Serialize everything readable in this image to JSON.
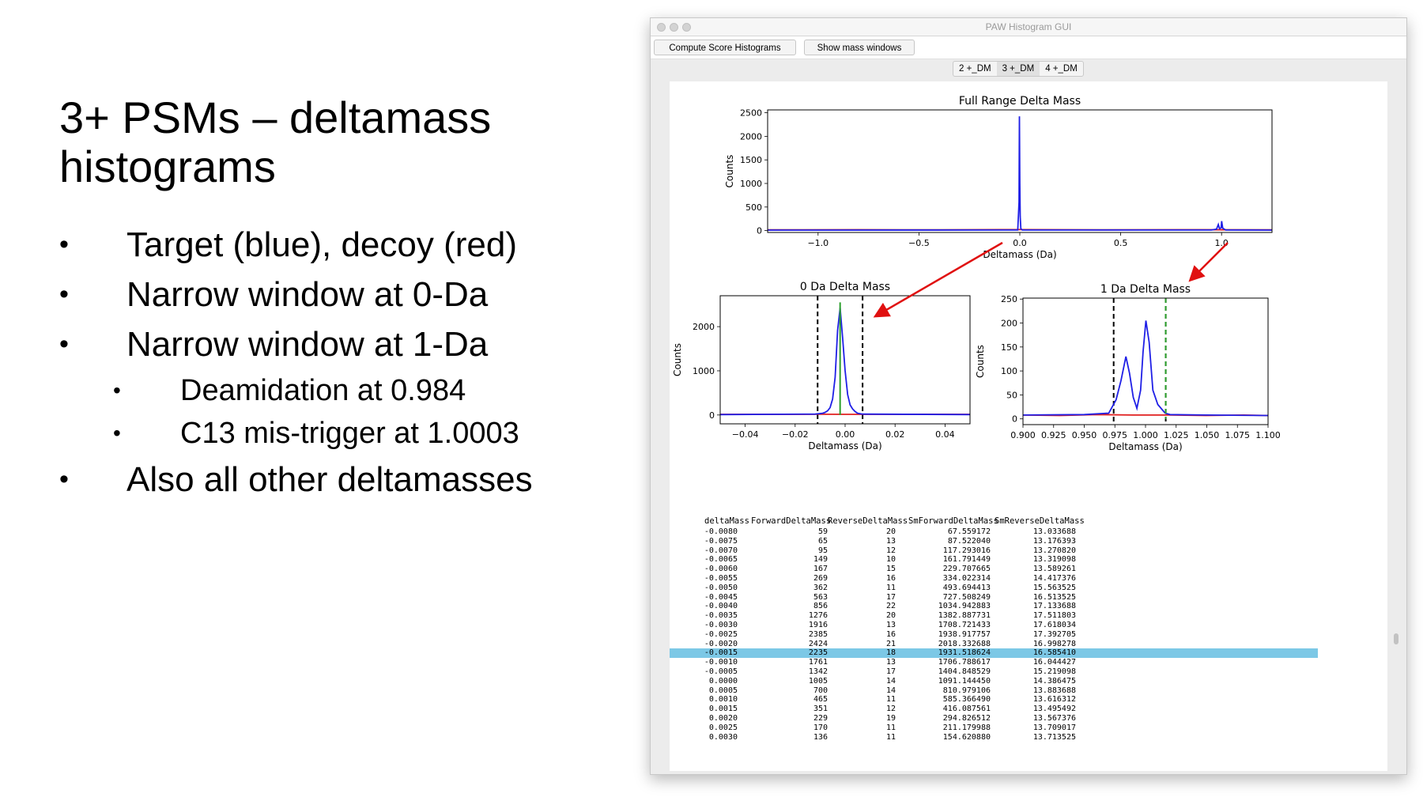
{
  "slide": {
    "title": "3+ PSMs – deltamass histograms",
    "bullets": [
      {
        "text": "Target (blue), decoy (red)",
        "level": 1
      },
      {
        "text": "Narrow window at 0-Da",
        "level": 1
      },
      {
        "text": "Narrow window at 1-Da",
        "level": 1
      },
      {
        "text": "Deamidation at 0.984",
        "level": 2
      },
      {
        "text": "C13 mis-trigger at 1.0003",
        "level": 2
      },
      {
        "text": "Also all other deltamasses",
        "level": 1
      }
    ]
  },
  "window": {
    "title": "PAW Histogram GUI",
    "toolbar": {
      "compute_label": "Compute Score Histograms",
      "show_label": "Show mass windows"
    },
    "tabs": [
      {
        "label": "2 +_DM",
        "active": false
      },
      {
        "label": "3 +_DM",
        "active": true
      },
      {
        "label": "4 +_DM",
        "active": false
      }
    ]
  },
  "colors": {
    "target": "#1f1fe6",
    "decoy": "#e02020",
    "center": "#2ca02c",
    "selection": "#7cc8e6"
  },
  "chart_data": [
    {
      "type": "line",
      "title": "Full Range Delta Mass",
      "xlabel": "Deltamass (Da)",
      "ylabel": "Counts",
      "xlim": [
        -1.25,
        1.25
      ],
      "ylim": [
        -40,
        2560
      ],
      "xticks": [
        "−1.0",
        "−0.5",
        "0.0",
        "0.5",
        "1.0"
      ],
      "xtick_values": [
        -1.0,
        -0.5,
        0.0,
        0.5,
        1.0
      ],
      "yticks": [
        "0",
        "500",
        "1000",
        "1500",
        "2000",
        "2500"
      ],
      "ytick_values": [
        0,
        500,
        1000,
        1500,
        2000,
        2500
      ],
      "series": [
        {
          "color": "target",
          "x": [
            -1.25,
            -0.01,
            -0.004,
            -0.002,
            0.0,
            0.002,
            0.005,
            0.012,
            0.95,
            0.975,
            0.984,
            0.99,
            0.998,
            1.0003,
            1.006,
            1.02,
            1.25
          ],
          "values": [
            10,
            12,
            600,
            2424,
            1005,
            300,
            40,
            12,
            12,
            30,
            130,
            40,
            60,
            200,
            50,
            14,
            10
          ]
        },
        {
          "color": "decoy",
          "x": [
            -1.25,
            -0.8,
            -0.4,
            0.0,
            0.4,
            0.8,
            1.25
          ],
          "values": [
            15,
            18,
            16,
            20,
            16,
            18,
            15
          ]
        }
      ]
    },
    {
      "type": "line",
      "title": "0 Da Delta Mass",
      "xlabel": "Deltamass (Da)",
      "ylabel": "Counts",
      "xlim": [
        -0.05,
        0.05
      ],
      "ylim": [
        -200,
        2700
      ],
      "xticks": [
        "−0.04",
        "−0.02",
        "0.00",
        "0.02",
        "0.04"
      ],
      "xtick_values": [
        -0.04,
        -0.02,
        0.0,
        0.02,
        0.04
      ],
      "yticks": [
        "0",
        "1000",
        "2000"
      ],
      "ytick_values": [
        0,
        1000,
        2000
      ],
      "windows": [
        -0.011,
        0.007
      ],
      "center_line": -0.002,
      "center_top": 2550,
      "series": [
        {
          "color": "target",
          "x": [
            -0.05,
            -0.012,
            -0.009,
            -0.008,
            -0.007,
            -0.006,
            -0.005,
            -0.004,
            -0.003,
            -0.002,
            -0.001,
            0.0,
            0.001,
            0.002,
            0.003,
            0.004,
            0.005,
            0.007,
            0.05
          ],
          "values": [
            10,
            20,
            40,
            59,
            95,
            167,
            362,
            856,
            1916,
            2424,
            1761,
            1005,
            465,
            229,
            136,
            80,
            40,
            20,
            10
          ]
        },
        {
          "color": "decoy",
          "x": [
            -0.05,
            -0.03,
            -0.01,
            0.0,
            0.01,
            0.03,
            0.05
          ],
          "values": [
            15,
            14,
            16,
            14,
            15,
            16,
            14
          ]
        }
      ]
    },
    {
      "type": "line",
      "title": "1 Da Delta Mass",
      "xlabel": "Deltamass (Da)",
      "ylabel": "Counts",
      "xlim": [
        0.9,
        1.1
      ],
      "ylim": [
        -12,
        252
      ],
      "xticks": [
        "0.900",
        "0.925",
        "0.950",
        "0.975",
        "1.000",
        "1.025",
        "1.050",
        "1.075",
        "1.100"
      ],
      "xtick_values": [
        0.9,
        0.925,
        0.95,
        0.975,
        1.0,
        1.025,
        1.05,
        1.075,
        1.1
      ],
      "yticks": [
        "0",
        "50",
        "100",
        "150",
        "200",
        "250"
      ],
      "ytick_values": [
        0,
        50,
        100,
        150,
        200,
        250
      ],
      "windows": [
        0.974,
        1.0165
      ],
      "center_line": 1.0165,
      "series": [
        {
          "color": "target",
          "x": [
            0.9,
            0.95,
            0.97,
            0.976,
            0.98,
            0.984,
            0.987,
            0.99,
            0.993,
            0.996,
            0.998,
            1.0003,
            1.003,
            1.006,
            1.01,
            1.016,
            1.02,
            1.05,
            1.1
          ],
          "values": [
            8,
            9,
            12,
            40,
            80,
            130,
            95,
            45,
            22,
            60,
            140,
            205,
            160,
            60,
            30,
            12,
            9,
            8,
            7
          ]
        },
        {
          "color": "decoy",
          "x": [
            0.9,
            0.93,
            0.96,
            0.99,
            1.02,
            1.05,
            1.08,
            1.1
          ],
          "values": [
            8,
            7,
            9,
            8,
            8,
            7,
            8,
            7
          ]
        }
      ]
    }
  ],
  "table": {
    "headers": [
      "deltaMass",
      "ForwardDeltaMass",
      "ReverseDeltaMass",
      "SmForwardDeltaMass",
      "SmReverseDeltaMass"
    ],
    "selected_index": 13,
    "rows": [
      [
        "-0.0080",
        "59",
        "20",
        "67.559172",
        "13.033688"
      ],
      [
        "-0.0075",
        "65",
        "13",
        "87.522040",
        "13.176393"
      ],
      [
        "-0.0070",
        "95",
        "12",
        "117.293016",
        "13.270820"
      ],
      [
        "-0.0065",
        "149",
        "10",
        "161.791449",
        "13.319098"
      ],
      [
        "-0.0060",
        "167",
        "15",
        "229.707665",
        "13.589261"
      ],
      [
        "-0.0055",
        "269",
        "16",
        "334.022314",
        "14.417376"
      ],
      [
        "-0.0050",
        "362",
        "11",
        "493.694413",
        "15.563525"
      ],
      [
        "-0.0045",
        "563",
        "17",
        "727.508249",
        "16.513525"
      ],
      [
        "-0.0040",
        "856",
        "22",
        "1034.942883",
        "17.133688"
      ],
      [
        "-0.0035",
        "1276",
        "20",
        "1382.887731",
        "17.511803"
      ],
      [
        "-0.0030",
        "1916",
        "13",
        "1708.721433",
        "17.618034"
      ],
      [
        "-0.0025",
        "2385",
        "16",
        "1938.917757",
        "17.392705"
      ],
      [
        "-0.0020",
        "2424",
        "21",
        "2018.332688",
        "16.998278"
      ],
      [
        "-0.0015",
        "2235",
        "18",
        "1931.518624",
        "16.585410"
      ],
      [
        "-0.0010",
        "1761",
        "13",
        "1706.788617",
        "16.044427"
      ],
      [
        "-0.0005",
        "1342",
        "17",
        "1404.848529",
        "15.219098"
      ],
      [
        "0.0000",
        "1005",
        "14",
        "1091.144450",
        "14.386475"
      ],
      [
        "0.0005",
        "700",
        "14",
        "810.979106",
        "13.883688"
      ],
      [
        "0.0010",
        "465",
        "11",
        "585.366490",
        "13.616312"
      ],
      [
        "0.0015",
        "351",
        "12",
        "416.087561",
        "13.495492"
      ],
      [
        "0.0020",
        "229",
        "19",
        "294.826512",
        "13.567376"
      ],
      [
        "0.0025",
        "170",
        "11",
        "211.179988",
        "13.709017"
      ],
      [
        "0.0030",
        "136",
        "11",
        "154.620880",
        "13.713525"
      ]
    ]
  }
}
